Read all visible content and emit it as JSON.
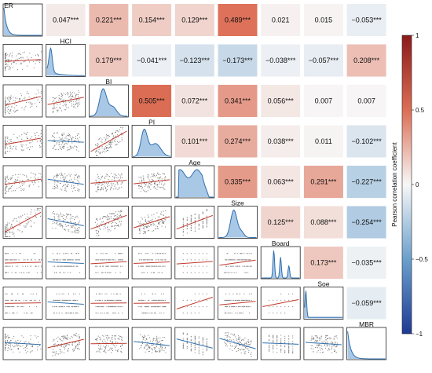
{
  "chart_data": {
    "type": "heatmap",
    "variables": [
      "ER",
      "HCI",
      "BI",
      "PI",
      "Age",
      "Size",
      "Board",
      "Soe",
      "MBR"
    ],
    "correlation_labels": {
      "ER-HCI": "0.047***",
      "ER-BI": "0.221***",
      "ER-PI": "0.154***",
      "ER-Age": "0.129***",
      "ER-Size": "0.489***",
      "ER-Board": "0.021",
      "ER-Soe": "0.015",
      "ER-MBR": "−0.053***",
      "HCI-BI": "0.179***",
      "HCI-PI": "−0.041***",
      "HCI-Age": "−0.123***",
      "HCI-Size": "−0.173***",
      "HCI-Board": "−0.038***",
      "HCI-Soe": "−0.057***",
      "HCI-MBR": "0.208***",
      "BI-PI": "0.505***",
      "BI-Age": "0.072***",
      "BI-Size": "0.341***",
      "BI-Board": "0.056***",
      "BI-Soe": "0.007",
      "BI-MBR": "0.007",
      "PI-Age": "0.101***",
      "PI-Size": "0.274***",
      "PI-Board": "0.038***",
      "PI-Soe": "0.011",
      "PI-MBR": "−0.102***",
      "Age-Size": "0.335***",
      "Age-Board": "0.063***",
      "Age-Soe": "0.291***",
      "Age-MBR": "−0.227***",
      "Size-Board": "0.125***",
      "Size-Soe": "0.088***",
      "Size-MBR": "−0.254***",
      "Board-Soe": "0.173***",
      "Board-MBR": "−0.035***",
      "Soe-MBR": "−0.059***"
    },
    "correlations": {
      "ER-HCI": 0.047,
      "ER-BI": 0.221,
      "ER-PI": 0.154,
      "ER-Age": 0.129,
      "ER-Size": 0.489,
      "ER-Board": 0.021,
      "ER-Soe": 0.015,
      "ER-MBR": -0.053,
      "HCI-BI": 0.179,
      "HCI-PI": -0.041,
      "HCI-Age": -0.123,
      "HCI-Size": -0.173,
      "HCI-Board": -0.038,
      "HCI-Soe": -0.057,
      "HCI-MBR": 0.208,
      "BI-PI": 0.505,
      "BI-Age": 0.072,
      "BI-Size": 0.341,
      "BI-Board": 0.056,
      "BI-Soe": 0.007,
      "BI-MBR": 0.007,
      "PI-Age": 0.101,
      "PI-Size": 0.274,
      "PI-Board": 0.038,
      "PI-Soe": 0.011,
      "PI-MBR": -0.102,
      "Age-Size": 0.335,
      "Age-Board": 0.063,
      "Age-Soe": 0.291,
      "Age-MBR": -0.227,
      "Size-Board": 0.125,
      "Size-Soe": 0.088,
      "Size-MBR": -0.254,
      "Board-Soe": 0.173,
      "Board-MBR": -0.035,
      "Soe-MBR": -0.059
    },
    "colorbar": {
      "label": "Pearson correlation coefficient",
      "ticks": [
        "1",
        "0.5",
        "0",
        "−0.5",
        "−1"
      ],
      "tick_values": [
        1,
        0.5,
        0,
        -0.5,
        -1
      ],
      "range": [
        -1,
        1
      ],
      "colors": {
        "negative": "#1f3a93",
        "zero": "#f7f7f7",
        "positive": "#8b1a1a"
      }
    },
    "diagonal": "density",
    "lower_triangle": "scatter with fitted line",
    "colors": {
      "density_fill": "#a9c8e6",
      "density_line": "#2f6fae",
      "points": "#555555",
      "fit_positive": "#c0392b",
      "fit_negative": "#2f6fae"
    }
  }
}
